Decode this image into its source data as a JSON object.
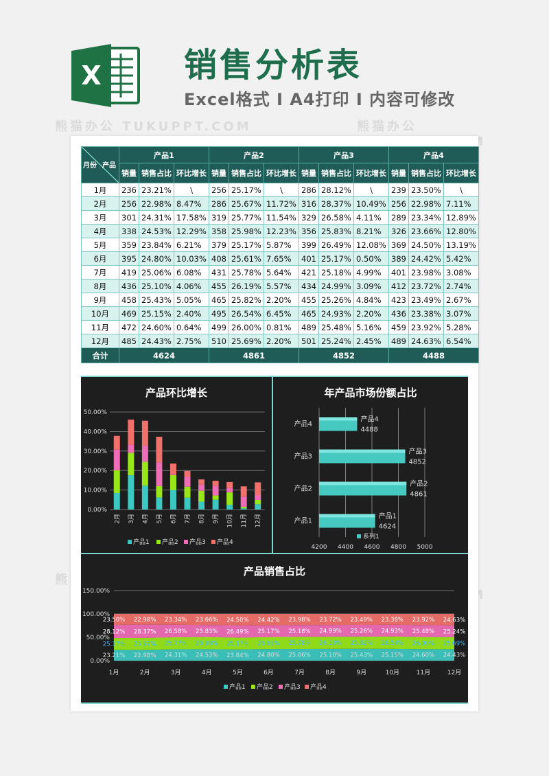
{
  "header": {
    "logo_letter": "X",
    "title": "销售分析表",
    "subtitle": "Excel格式 I A4打印 I 内容可修改"
  },
  "watermark": "熊猫办公 TUKUPPT.COM",
  "table": {
    "corner_month": "月份",
    "corner_product": "产品",
    "products": [
      "产品1",
      "产品2",
      "产品3",
      "产品4"
    ],
    "subheaders": [
      "销量",
      "销售占比",
      "环比增长"
    ],
    "rows": [
      {
        "month": "1月",
        "cells": [
          [
            "236",
            "23.21%",
            "\\"
          ],
          [
            "256",
            "25.17%",
            "\\"
          ],
          [
            "286",
            "28.12%",
            "\\"
          ],
          [
            "239",
            "23.50%",
            "\\"
          ]
        ]
      },
      {
        "month": "2月",
        "cells": [
          [
            "256",
            "22.98%",
            "8.47%"
          ],
          [
            "286",
            "25.67%",
            "11.72%"
          ],
          [
            "316",
            "28.37%",
            "10.49%"
          ],
          [
            "256",
            "22.98%",
            "7.11%"
          ]
        ]
      },
      {
        "month": "3月",
        "cells": [
          [
            "301",
            "24.31%",
            "17.58%"
          ],
          [
            "319",
            "25.77%",
            "11.54%"
          ],
          [
            "329",
            "26.58%",
            "4.11%"
          ],
          [
            "289",
            "23.34%",
            "12.89%"
          ]
        ]
      },
      {
        "month": "4月",
        "cells": [
          [
            "338",
            "24.53%",
            "12.29%"
          ],
          [
            "358",
            "25.98%",
            "12.23%"
          ],
          [
            "356",
            "25.83%",
            "8.21%"
          ],
          [
            "326",
            "23.66%",
            "12.80%"
          ]
        ]
      },
      {
        "month": "5月",
        "cells": [
          [
            "359",
            "23.84%",
            "6.21%"
          ],
          [
            "379",
            "25.17%",
            "5.87%"
          ],
          [
            "399",
            "26.49%",
            "12.08%"
          ],
          [
            "369",
            "24.50%",
            "13.19%"
          ]
        ]
      },
      {
        "month": "6月",
        "cells": [
          [
            "395",
            "24.80%",
            "10.03%"
          ],
          [
            "408",
            "25.61%",
            "7.65%"
          ],
          [
            "401",
            "25.17%",
            "0.50%"
          ],
          [
            "389",
            "24.42%",
            "5.42%"
          ]
        ]
      },
      {
        "month": "7月",
        "cells": [
          [
            "419",
            "25.06%",
            "6.08%"
          ],
          [
            "431",
            "25.78%",
            "5.64%"
          ],
          [
            "421",
            "25.18%",
            "4.99%"
          ],
          [
            "401",
            "23.98%",
            "3.08%"
          ]
        ]
      },
      {
        "month": "8月",
        "cells": [
          [
            "436",
            "25.10%",
            "4.06%"
          ],
          [
            "455",
            "26.19%",
            "5.57%"
          ],
          [
            "434",
            "24.99%",
            "3.09%"
          ],
          [
            "412",
            "23.72%",
            "2.74%"
          ]
        ]
      },
      {
        "month": "9月",
        "cells": [
          [
            "458",
            "25.43%",
            "5.05%"
          ],
          [
            "465",
            "25.82%",
            "2.20%"
          ],
          [
            "455",
            "25.26%",
            "4.84%"
          ],
          [
            "423",
            "23.49%",
            "2.67%"
          ]
        ]
      },
      {
        "month": "10月",
        "cells": [
          [
            "469",
            "25.15%",
            "2.40%"
          ],
          [
            "495",
            "26.54%",
            "6.45%"
          ],
          [
            "465",
            "24.93%",
            "2.20%"
          ],
          [
            "436",
            "23.38%",
            "3.07%"
          ]
        ]
      },
      {
        "month": "11月",
        "cells": [
          [
            "472",
            "24.60%",
            "0.64%"
          ],
          [
            "499",
            "26.00%",
            "0.81%"
          ],
          [
            "489",
            "25.48%",
            "5.16%"
          ],
          [
            "459",
            "23.92%",
            "5.28%"
          ]
        ]
      },
      {
        "month": "12月",
        "cells": [
          [
            "485",
            "24.43%",
            "2.75%"
          ],
          [
            "510",
            "25.69%",
            "2.20%"
          ],
          [
            "501",
            "25.24%",
            "2.45%"
          ],
          [
            "489",
            "24.63%",
            "6.54%"
          ]
        ]
      }
    ],
    "total_label": "合计",
    "totals": [
      "4624",
      "4861",
      "4852",
      "4488"
    ]
  },
  "colors": {
    "series": [
      "#3cc7c0",
      "#98e51a",
      "#ef6db6",
      "#f0706c"
    ],
    "header_bg": "#1f5c57",
    "panel_bg": "#1e1e1e",
    "title_green": "#1e6e4e"
  },
  "chart_data": [
    {
      "type": "bar",
      "stacked": true,
      "title": "产品环比增长",
      "categories": [
        "2月",
        "3月",
        "4月",
        "5月",
        "6月",
        "7月",
        "8月",
        "9月",
        "10月",
        "11月",
        "12月"
      ],
      "series": [
        {
          "name": "产品1",
          "values": [
            8.47,
            17.58,
            12.29,
            6.21,
            10.03,
            6.08,
            4.06,
            5.05,
            2.4,
            0.64,
            2.75
          ]
        },
        {
          "name": "产品2",
          "values": [
            11.72,
            11.54,
            12.23,
            5.87,
            7.65,
            5.64,
            5.57,
            2.2,
            6.45,
            0.81,
            2.2
          ]
        },
        {
          "name": "产品3",
          "values": [
            10.49,
            4.11,
            8.21,
            12.08,
            0.5,
            4.99,
            3.09,
            4.84,
            2.2,
            5.16,
            2.45
          ]
        },
        {
          "name": "产品4",
          "values": [
            7.11,
            12.89,
            12.8,
            13.19,
            5.42,
            3.08,
            2.74,
            2.67,
            3.07,
            5.28,
            6.54
          ]
        }
      ],
      "yticks": [
        "0.00%",
        "10.00%",
        "20.00%",
        "30.00%",
        "40.00%",
        "50.00%"
      ],
      "ylim": [
        0,
        50
      ],
      "grid": true,
      "legend": "bottom"
    },
    {
      "type": "bar",
      "orientation": "horizontal",
      "title": "年产品市场份额占比",
      "categories": [
        "产品1",
        "产品2",
        "产品3",
        "产品4"
      ],
      "series": [
        {
          "name": "系列1",
          "values": [
            4624,
            4861,
            4852,
            4488
          ]
        }
      ],
      "xticks": [
        "4200",
        "4400",
        "4600",
        "4800",
        "5000"
      ],
      "xlim": [
        4200,
        5000
      ],
      "grid": true,
      "legend": "bottom"
    },
    {
      "type": "area",
      "stacked": true,
      "title": "产品销售占比",
      "categories": [
        "1月",
        "2月",
        "3月",
        "4月",
        "5月",
        "6月",
        "7月",
        "8月",
        "9月",
        "10月",
        "11月",
        "12月"
      ],
      "series": [
        {
          "name": "产品1",
          "values": [
            23.21,
            22.98,
            24.31,
            24.53,
            23.84,
            24.8,
            25.06,
            25.1,
            25.43,
            25.15,
            24.6,
            24.43
          ],
          "labels": [
            "23.21%",
            "22.98%",
            "24.31%",
            "24.53%",
            "23.84%",
            "24.80%",
            "25.06%",
            "25.10%",
            "25.43%",
            "25.15%",
            "24.60%",
            "24.43%"
          ]
        },
        {
          "name": "产品2",
          "values": [
            25.17,
            25.67,
            25.77,
            25.98,
            25.17,
            25.61,
            25.78,
            26.19,
            25.82,
            26.54,
            26.0,
            25.69
          ],
          "labels": [
            "25.17%",
            "25.67%",
            "25.77%",
            "25.98%",
            "25.17%",
            "25.61%",
            "25.78%",
            "26.19%",
            "25.82%",
            "26.54%",
            "26.00%",
            "25.69%"
          ]
        },
        {
          "name": "产品3",
          "values": [
            28.12,
            28.37,
            26.58,
            25.83,
            26.49,
            25.17,
            25.18,
            24.99,
            25.26,
            24.93,
            25.48,
            25.24
          ],
          "labels": [
            "28.12%",
            "28.37%",
            "26.58%",
            "25.83%",
            "26.49%",
            "25.17%",
            "25.18%",
            "24.99%",
            "25.26%",
            "24.93%",
            "25.48%",
            "25.24%"
          ]
        },
        {
          "name": "产品4",
          "values": [
            23.5,
            22.98,
            23.34,
            23.66,
            24.5,
            24.42,
            23.98,
            23.72,
            23.49,
            23.38,
            23.92,
            24.63
          ],
          "labels": [
            "23.50%",
            "22.98%",
            "23.34%",
            "23.66%",
            "24.50%",
            "24.42%",
            "23.98%",
            "23.72%",
            "23.49%",
            "23.38%",
            "23.92%",
            "24.63%"
          ]
        }
      ],
      "yticks": [
        "0.00%",
        "50.00%",
        "100.00%",
        "150.00%"
      ],
      "ylim": [
        0,
        150
      ],
      "grid": true,
      "legend": "bottom"
    }
  ]
}
